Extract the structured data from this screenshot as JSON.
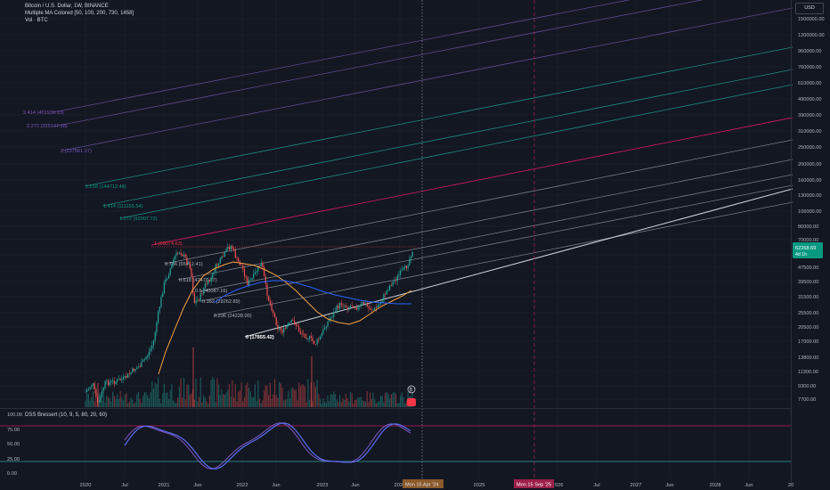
{
  "legend": {
    "line1": "Bitcoin / U.S. Dollar, 1W, BINANCE",
    "line2": "Multiple MA Colored [50, 100, 200, 730, 1458]",
    "line3": "Vol · BTC"
  },
  "currency_button": "USD",
  "price_axis": [
    "1500000.00",
    "1200000.00",
    "960000.00",
    "760000.00",
    "610000.00",
    "490000.00",
    "390000.00",
    "310000.00",
    "250000.00",
    "200000.00",
    "160000.00",
    "130000.00",
    "106000.00",
    "86000.00",
    "70000.00",
    "57500.00",
    "47500.00",
    "39500.00",
    "31500.00",
    "25500.00",
    "20500.00",
    "17000.00",
    "13800.00",
    "11300.00",
    "9300.00",
    "7700.00"
  ],
  "current_price": {
    "value": "62268.69",
    "countdown": "4d 1h",
    "color": "#089981"
  },
  "fib_labels": [
    {
      "text": "1 (69074.63)",
      "color": "#f23645"
    },
    {
      "text": "0.786 (55412.41)",
      "color": "#b2b5be"
    },
    {
      "text": "0.618 (47470.77)",
      "color": "#b2b5be"
    },
    {
      "text": "0.5 (40087.16)",
      "color": "#b2b5be"
    },
    {
      "text": "0.382 (29262.89)",
      "color": "#b2b5be"
    },
    {
      "text": "0.236 (24228.00)",
      "color": "#b2b5be"
    },
    {
      "text": "0 (17855.42)",
      "color": "#ffffff"
    },
    {
      "text": "1.272 (92907.72)",
      "color": "#089981"
    },
    {
      "text": "1.414 (111155.54)",
      "color": "#089981"
    },
    {
      "text": "1.618 (144712.48)",
      "color": "#089981"
    },
    {
      "text": "2 (237561.27)",
      "color": "#7e57c2"
    },
    {
      "text": "2.272 (325147.18)",
      "color": "#7e57c2"
    },
    {
      "text": "2.414 (401930.13)",
      "color": "#7e57c2"
    }
  ],
  "oscillator": {
    "title": "DSS Bressert (10, 9, 5, 80, 20, 60)",
    "axis": [
      "100.00",
      "75.00",
      "50.00",
      "25.00",
      "0.00"
    ]
  },
  "time_axis": [
    "2020",
    "Jul",
    "2021",
    "Jun",
    "2022",
    "Jun",
    "2023",
    "Jun",
    "2024",
    "2025",
    "2026",
    "Jul",
    "2027",
    "Jun",
    "2028",
    "Jun",
    "20"
  ],
  "time_markers": [
    {
      "text": "Mon 15 Apr '24",
      "color": "#8a5a2b"
    },
    {
      "text": "Mon 15 Sep '25",
      "color": "#9c1f4a"
    }
  ],
  "colors": {
    "up": "#26a69a",
    "down": "#ef5350",
    "ma_orange": "#f7a440",
    "ma_blue": "#2962ff",
    "osc_blue": "#5b6cf0",
    "osc_purple": "#7e57c2"
  }
}
